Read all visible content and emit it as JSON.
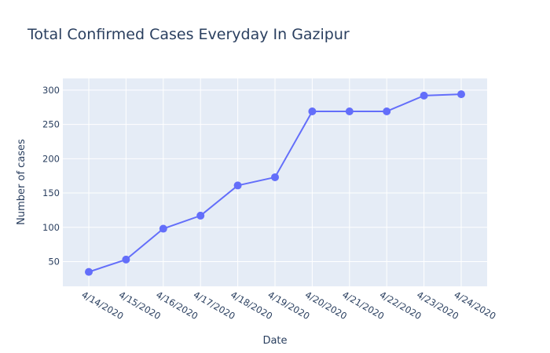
{
  "chart_data": {
    "type": "line",
    "title": "Total Confirmed Cases Everyday In Gazipur",
    "xlabel": "Date",
    "ylabel": "Number of cases",
    "categories": [
      "4/14/2020",
      "4/15/2020",
      "4/16/2020",
      "4/17/2020",
      "4/18/2020",
      "4/19/2020",
      "4/20/2020",
      "4/21/2020",
      "4/22/2020",
      "4/23/2020",
      "4/24/2020"
    ],
    "series": [
      {
        "values": [
          35,
          53,
          98,
          117,
          161,
          173,
          269,
          269,
          269,
          292,
          294
        ]
      }
    ],
    "y_ticks": [
      "50",
      "100",
      "150",
      "200",
      "250",
      "300"
    ],
    "ylim": [
      14,
      317
    ],
    "grid": true,
    "colors": {
      "line": "#636efa",
      "plot_background": "#e5ecf6",
      "gridline": "#ffffff",
      "text": "#2a3f5f"
    }
  }
}
